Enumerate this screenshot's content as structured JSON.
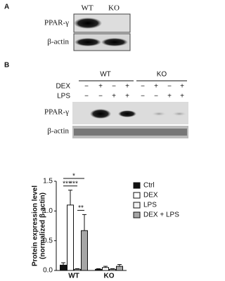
{
  "panel_a": {
    "label": "A",
    "columns": [
      "WT",
      "KO"
    ],
    "rows": [
      "PPAR-γ",
      "β-actin"
    ]
  },
  "panel_b": {
    "label": "B",
    "groups": [
      "WT",
      "KO"
    ],
    "treatments": [
      {
        "name": "DEX",
        "signs": [
          "−",
          "+",
          "−",
          "+",
          "−",
          "+",
          "−",
          "+"
        ]
      },
      {
        "name": "LPS",
        "signs": [
          "−",
          "−",
          "+",
          "+",
          "−",
          "−",
          "+",
          "+"
        ]
      }
    ],
    "rows": [
      "PPAR-γ",
      "β-actin"
    ]
  },
  "chart_data": {
    "type": "bar",
    "ylabel": [
      "Protein expression level",
      "(normalized β-actin)"
    ],
    "categories": [
      "WT",
      "KO"
    ],
    "series": [
      {
        "name": "Ctrl",
        "color": "#111111",
        "values": [
          0.09,
          0.02
        ],
        "errors": [
          0.04,
          0.01
        ]
      },
      {
        "name": "DEX",
        "color": "#ffffff",
        "values": [
          1.1,
          0.05
        ],
        "errors": [
          0.25,
          0.02
        ]
      },
      {
        "name": "LPS",
        "color": "#f2f2f2",
        "values": [
          0.02,
          0.02
        ],
        "errors": [
          0.01,
          0.01
        ]
      },
      {
        "name": "DEX + LPS",
        "color": "#a6a6a6",
        "values": [
          0.67,
          0.07
        ],
        "errors": [
          0.27,
          0.03
        ]
      }
    ],
    "ylim": [
      0,
      1.5
    ],
    "yticks": [
      {
        "value": 0,
        "label": "0.0"
      },
      0.5,
      {
        "value": 1,
        "label": "1.0"
      },
      1.5
    ],
    "annotations": [
      {
        "text": "***",
        "series": [
          0,
          1
        ]
      },
      {
        "text": "***",
        "series": [
          1,
          2
        ]
      },
      {
        "text": "*",
        "series": [
          0,
          3
        ]
      },
      {
        "text": "**",
        "series": [
          2,
          3
        ]
      }
    ]
  }
}
